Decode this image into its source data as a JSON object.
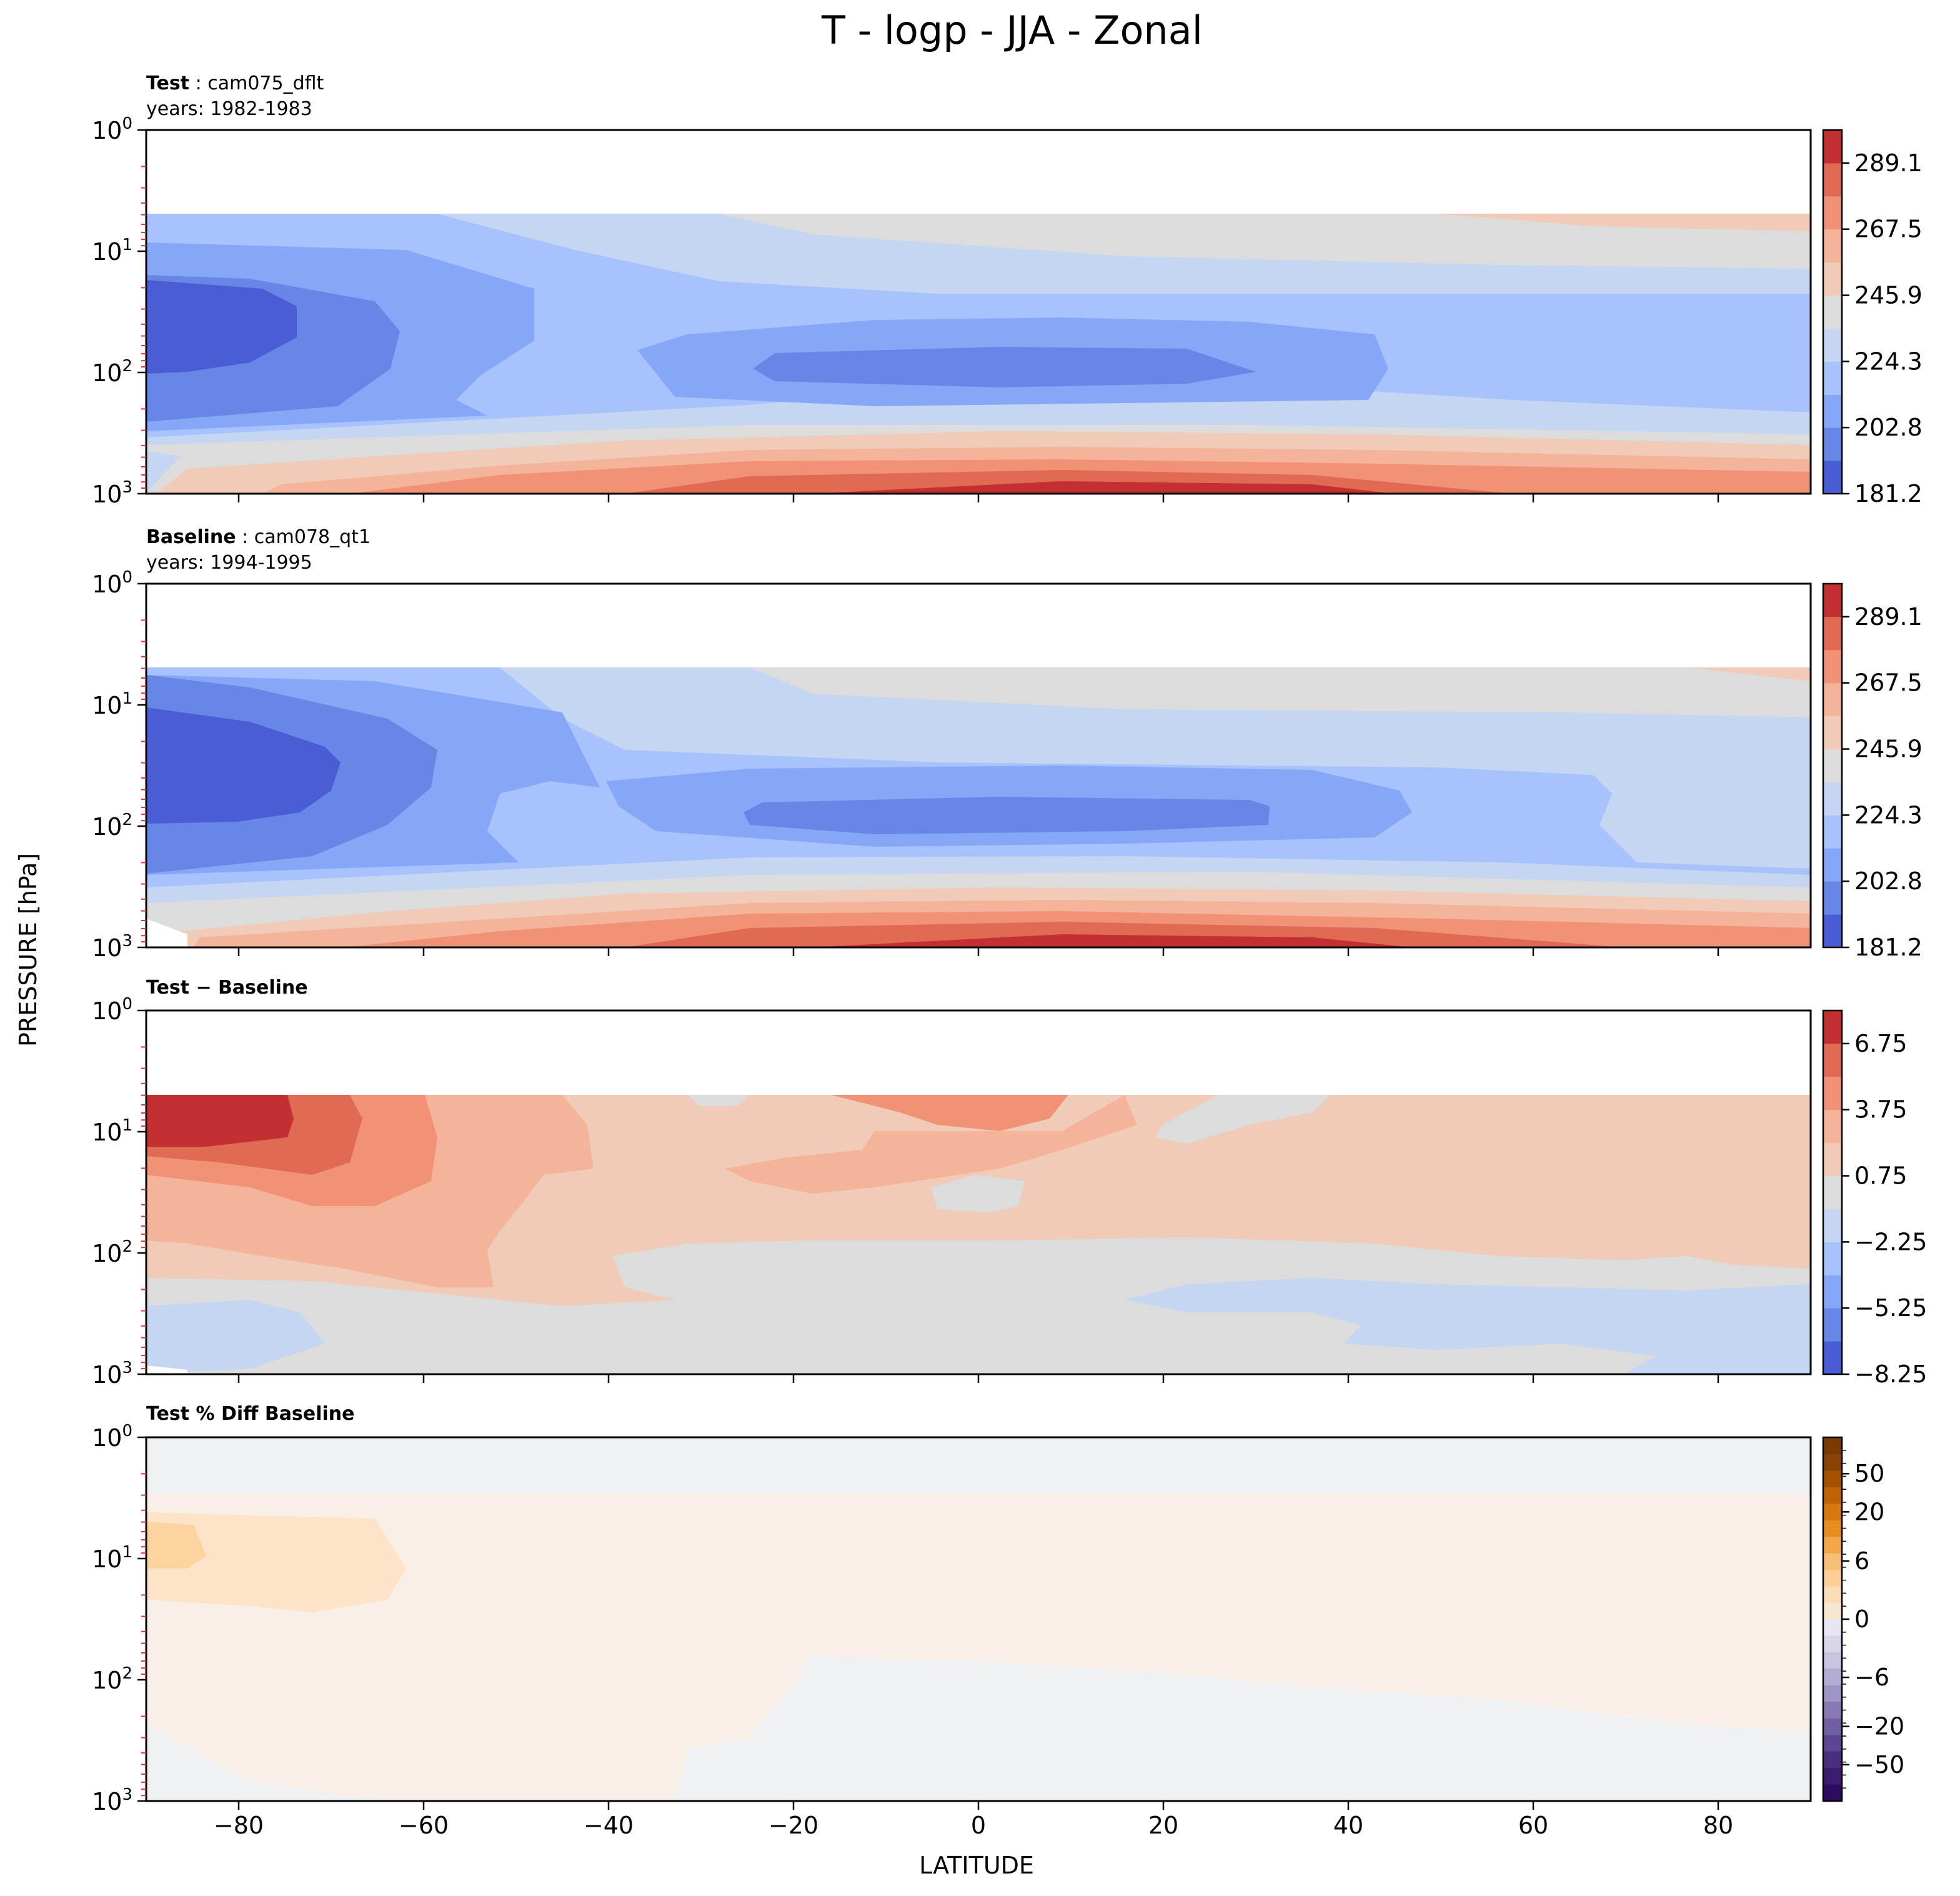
{
  "figure": {
    "title": "T - logp - JJA - Zonal",
    "ylabel": "PRESSURE [hPa]",
    "xlabel": "LATITUDE"
  },
  "chart_data": [
    {
      "type": "heatmap",
      "name": "test",
      "title_bold": "Test",
      "title_rest": " : cam075_dflt",
      "subtitle": "years: 1982-1983",
      "x_range": [
        -90,
        90
      ],
      "y_range_hpa": [
        1000,
        1
      ],
      "y_scale": "log",
      "colormap": "coolwarm",
      "colorbar_ticks": [
        "289.1",
        "267.5",
        "245.9",
        "224.3",
        "202.8",
        "181.2"
      ],
      "description_values": {
        "min_level": 181.2,
        "max_level": 300.0,
        "n_levels": 11
      }
    },
    {
      "type": "heatmap",
      "name": "baseline",
      "title_bold": "Baseline",
      "title_rest": " : cam078_qt1",
      "subtitle": "years: 1994-1995",
      "x_range": [
        -90,
        90
      ],
      "y_range_hpa": [
        1000,
        1
      ],
      "y_scale": "log",
      "colormap": "coolwarm",
      "colorbar_ticks": [
        "289.1",
        "267.5",
        "245.9",
        "224.3",
        "202.8",
        "181.2"
      ],
      "description_values": {
        "min_level": 181.2,
        "max_level": 300.0,
        "n_levels": 11
      }
    },
    {
      "type": "heatmap",
      "name": "diff",
      "title_bold": "Test − Baseline",
      "title_rest": "",
      "subtitle": "",
      "x_range": [
        -90,
        90
      ],
      "y_range_hpa": [
        1000,
        1
      ],
      "y_scale": "log",
      "colormap": "coolwarm",
      "colorbar_ticks": [
        "6.75",
        "3.75",
        "0.75",
        "−2.25",
        "−5.25",
        "−8.25"
      ],
      "description_values": {
        "min_level": -8.25,
        "max_level": 8.25,
        "n_levels": 11
      }
    },
    {
      "type": "heatmap",
      "name": "pctdiff",
      "title_bold": "Test % Diff Baseline",
      "title_rest": "",
      "subtitle": "",
      "x_range": [
        -90,
        90
      ],
      "y_range_hpa": [
        1000,
        1
      ],
      "y_scale": "log",
      "colormap": "PuOr_r",
      "colorbar_ticks": [
        "50",
        "20",
        "6",
        "0",
        "−6",
        "−20",
        "−50"
      ],
      "description_values": {
        "min_level": -100,
        "max_level": 100
      }
    }
  ],
  "axes": {
    "x_ticks": [
      "−80",
      "−60",
      "−40",
      "−20",
      "0",
      "20",
      "40",
      "60",
      "80"
    ],
    "x_tick_values": [
      -80,
      -60,
      -40,
      -20,
      0,
      20,
      40,
      60,
      80
    ],
    "y_tick_base": "10",
    "y_tick_exponents": [
      "0",
      "1",
      "2",
      "3"
    ]
  },
  "colors": {
    "c_blue_dark": "#4b5dd5",
    "c_blue2": "#6787e6",
    "c_blue3": "#86a7f7",
    "c_blue4": "#a7c2fd",
    "c_blue5": "#c5d6f2",
    "c_grey": "#dcdcdc",
    "c_peach1": "#f0cbb8",
    "c_peach2": "#f5b39a",
    "c_orange3": "#f19276",
    "c_red4": "#e06a53",
    "c_red5": "#c43032",
    "pct_pos": "#f8f0e6",
    "pct_pos2": "#fde4c8",
    "pct_pos3": "#fdd49f",
    "pct_neg": "#eff0f4"
  }
}
